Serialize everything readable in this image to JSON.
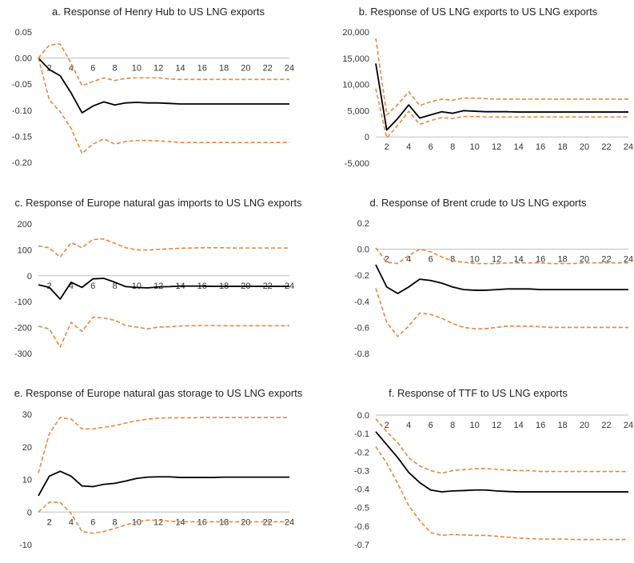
{
  "colors": {
    "irf": "#000000",
    "band": "#e8873a",
    "zero_line": "#bfbfbf"
  },
  "chart_data": [
    {
      "panel": "a",
      "type": "line",
      "title": "a. Response of Henry Hub to US LNG exports",
      "x": [
        1,
        2,
        3,
        4,
        5,
        6,
        7,
        8,
        9,
        10,
        11,
        12,
        13,
        14,
        15,
        16,
        17,
        18,
        19,
        20,
        21,
        22,
        23,
        24
      ],
      "x_tick_labels": [
        "2",
        "4",
        "6",
        "8",
        "10",
        "12",
        "14",
        "16",
        "18",
        "20",
        "22",
        "24"
      ],
      "x_ticks": [
        2,
        4,
        6,
        8,
        10,
        12,
        14,
        16,
        18,
        20,
        22,
        24
      ],
      "y_ticks": [
        0.05,
        0,
        -0.05,
        -0.1,
        -0.15,
        -0.2
      ],
      "y_tick_labels": [
        "0.05",
        "0.00",
        "-0.05",
        "-0.10",
        "-0.15",
        "-0.20"
      ],
      "ylim": [
        -0.2,
        0.05
      ],
      "series": [
        {
          "role": "irf",
          "values": [
            0.0,
            -0.022,
            -0.034,
            -0.067,
            -0.105,
            -0.092,
            -0.084,
            -0.09,
            -0.086,
            -0.085,
            -0.086,
            -0.086,
            -0.087,
            -0.088,
            -0.088,
            -0.088,
            -0.088,
            -0.088,
            -0.088,
            -0.088,
            -0.088,
            -0.088,
            -0.088,
            -0.088
          ]
        },
        {
          "role": "upper",
          "values": [
            0.0,
            0.025,
            0.027,
            -0.01,
            -0.053,
            -0.045,
            -0.038,
            -0.043,
            -0.039,
            -0.038,
            -0.038,
            -0.038,
            -0.04,
            -0.041,
            -0.041,
            -0.041,
            -0.041,
            -0.041,
            -0.041,
            -0.041,
            -0.041,
            -0.041,
            -0.041,
            -0.041
          ]
        },
        {
          "role": "lower",
          "values": [
            0.0,
            -0.08,
            -0.103,
            -0.135,
            -0.183,
            -0.165,
            -0.155,
            -0.165,
            -0.16,
            -0.158,
            -0.158,
            -0.159,
            -0.16,
            -0.162,
            -0.162,
            -0.162,
            -0.162,
            -0.162,
            -0.162,
            -0.162,
            -0.162,
            -0.162,
            -0.162,
            -0.162
          ]
        }
      ]
    },
    {
      "panel": "b",
      "type": "line",
      "title": "b. Response of US LNG exports to US LNG exports",
      "x": [
        1,
        2,
        3,
        4,
        5,
        6,
        7,
        8,
        9,
        10,
        11,
        12,
        13,
        14,
        15,
        16,
        17,
        18,
        19,
        20,
        21,
        22,
        23,
        24
      ],
      "x_tick_labels": [
        "2",
        "4",
        "6",
        "8",
        "10",
        "12",
        "14",
        "16",
        "18",
        "20",
        "22",
        "24"
      ],
      "x_ticks": [
        2,
        4,
        6,
        8,
        10,
        12,
        14,
        16,
        18,
        20,
        22,
        24
      ],
      "y_ticks": [
        20000,
        15000,
        10000,
        5000,
        0,
        -5000
      ],
      "y_tick_labels": [
        "20,000",
        "15,000",
        "10,000",
        "5,000",
        "0",
        "-5,000"
      ],
      "ylim": [
        -5000,
        20000
      ],
      "series": [
        {
          "role": "irf",
          "values": [
            14000,
            1300,
            3500,
            6100,
            3600,
            4200,
            4800,
            4500,
            5000,
            4900,
            4800,
            4800,
            4800,
            4750,
            4750,
            4750,
            4750,
            4750,
            4750,
            4750,
            4750,
            4750,
            4750,
            4750
          ]
        },
        {
          "role": "upper",
          "values": [
            18800,
            4200,
            6200,
            8600,
            6000,
            6700,
            7200,
            7000,
            7400,
            7400,
            7300,
            7200,
            7200,
            7200,
            7200,
            7200,
            7200,
            7200,
            7200,
            7200,
            7200,
            7200,
            7200,
            7200
          ]
        },
        {
          "role": "lower",
          "values": [
            9200,
            -200,
            2200,
            4900,
            2400,
            3100,
            3700,
            3500,
            3900,
            3900,
            3800,
            3800,
            3800,
            3800,
            3800,
            3800,
            3800,
            3800,
            3800,
            3800,
            3800,
            3800,
            3800,
            3800
          ]
        }
      ]
    },
    {
      "panel": "c",
      "type": "line",
      "title": "c. Response of Europe natural gas imports to US LNG exports",
      "x": [
        1,
        2,
        3,
        4,
        5,
        6,
        7,
        8,
        9,
        10,
        11,
        12,
        13,
        14,
        15,
        16,
        17,
        18,
        19,
        20,
        21,
        22,
        23,
        24
      ],
      "x_tick_labels": [
        "2",
        "4",
        "6",
        "8",
        "10",
        "12",
        "14",
        "16",
        "18",
        "20",
        "22",
        "24"
      ],
      "x_ticks": [
        2,
        4,
        6,
        8,
        10,
        12,
        14,
        16,
        18,
        20,
        22,
        24
      ],
      "y_ticks": [
        200,
        100,
        0,
        -100,
        -200,
        -300
      ],
      "y_tick_labels": [
        "200",
        "100",
        "0",
        "-100",
        "-200",
        "-300"
      ],
      "ylim": [
        -300,
        200
      ],
      "series": [
        {
          "role": "irf",
          "values": [
            -35,
            -45,
            -90,
            -25,
            -45,
            -12,
            -10,
            -25,
            -42,
            -45,
            -47,
            -43,
            -42,
            -40,
            -40,
            -40,
            -41,
            -41,
            -41,
            -41,
            -41,
            -41,
            -41,
            -41
          ]
        },
        {
          "role": "upper",
          "values": [
            115,
            108,
            72,
            128,
            108,
            140,
            142,
            125,
            108,
            100,
            99,
            102,
            104,
            106,
            107,
            108,
            108,
            108,
            107,
            107,
            107,
            107,
            107,
            107
          ]
        },
        {
          "role": "lower",
          "values": [
            -195,
            -205,
            -275,
            -180,
            -215,
            -160,
            -163,
            -172,
            -192,
            -198,
            -205,
            -198,
            -197,
            -194,
            -193,
            -192,
            -192,
            -193,
            -193,
            -193,
            -193,
            -193,
            -193,
            -193
          ]
        }
      ]
    },
    {
      "panel": "d",
      "type": "line",
      "title": "d. Response of Brent crude to US LNG exports",
      "x": [
        1,
        2,
        3,
        4,
        5,
        6,
        7,
        8,
        9,
        10,
        11,
        12,
        13,
        14,
        15,
        16,
        17,
        18,
        19,
        20,
        21,
        22,
        23,
        24
      ],
      "x_tick_labels": [
        "2",
        "4",
        "6",
        "8",
        "10",
        "12",
        "14",
        "16",
        "18",
        "20",
        "22",
        "24"
      ],
      "x_ticks": [
        2,
        4,
        6,
        8,
        10,
        12,
        14,
        16,
        18,
        20,
        22,
        24
      ],
      "y_ticks": [
        0.2,
        0,
        -0.2,
        -0.4,
        -0.6,
        -0.8
      ],
      "y_tick_labels": [
        "0.2",
        "0.0",
        "-0.2",
        "-0.4",
        "-0.6",
        "-0.8"
      ],
      "ylim": [
        -0.8,
        0.2
      ],
      "series": [
        {
          "role": "irf",
          "values": [
            -0.12,
            -0.29,
            -0.34,
            -0.29,
            -0.23,
            -0.24,
            -0.26,
            -0.29,
            -0.31,
            -0.315,
            -0.315,
            -0.31,
            -0.305,
            -0.305,
            -0.305,
            -0.31,
            -0.31,
            -0.31,
            -0.31,
            -0.31,
            -0.31,
            -0.31,
            -0.31,
            -0.31
          ]
        },
        {
          "role": "upper",
          "values": [
            0.01,
            -0.1,
            -0.11,
            -0.05,
            0.0,
            -0.02,
            -0.06,
            -0.09,
            -0.1,
            -0.11,
            -0.11,
            -0.11,
            -0.105,
            -0.105,
            -0.105,
            -0.105,
            -0.11,
            -0.11,
            -0.11,
            -0.105,
            -0.105,
            -0.105,
            -0.105,
            -0.105
          ]
        },
        {
          "role": "lower",
          "values": [
            -0.3,
            -0.56,
            -0.67,
            -0.59,
            -0.49,
            -0.5,
            -0.53,
            -0.57,
            -0.6,
            -0.61,
            -0.61,
            -0.6,
            -0.59,
            -0.59,
            -0.59,
            -0.595,
            -0.6,
            -0.6,
            -0.6,
            -0.6,
            -0.6,
            -0.6,
            -0.6,
            -0.6
          ]
        }
      ]
    },
    {
      "panel": "e",
      "type": "line",
      "title": "e. Response of Europe natural gas storage to US LNG exports",
      "x": [
        1,
        2,
        3,
        4,
        5,
        6,
        7,
        8,
        9,
        10,
        11,
        12,
        13,
        14,
        15,
        16,
        17,
        18,
        19,
        20,
        21,
        22,
        23,
        24
      ],
      "x_tick_labels": [
        "2",
        "4",
        "6",
        "8",
        "10",
        "12",
        "14",
        "16",
        "18",
        "20",
        "22",
        "24"
      ],
      "x_ticks": [
        2,
        4,
        6,
        8,
        10,
        12,
        14,
        16,
        18,
        20,
        22,
        24
      ],
      "y_ticks": [
        30,
        20,
        10,
        0,
        -10
      ],
      "y_tick_labels": [
        "30",
        "20",
        "10",
        "0",
        "-10"
      ],
      "ylim": [
        -10,
        30
      ],
      "series": [
        {
          "role": "irf",
          "values": [
            5.0,
            11.0,
            12.5,
            11.0,
            8.0,
            7.8,
            8.5,
            8.8,
            9.5,
            10.3,
            10.7,
            10.8,
            10.8,
            10.6,
            10.6,
            10.6,
            10.6,
            10.7,
            10.7,
            10.7,
            10.7,
            10.7,
            10.7,
            10.7
          ]
        },
        {
          "role": "upper",
          "values": [
            12.0,
            24.0,
            29.0,
            28.5,
            25.5,
            25.5,
            26.0,
            26.5,
            27.3,
            28.0,
            28.5,
            28.8,
            28.9,
            28.9,
            28.9,
            29.0,
            29.0,
            29.0,
            29.0,
            29.0,
            29.0,
            29.0,
            29.0,
            29.0
          ]
        },
        {
          "role": "lower",
          "values": [
            0.0,
            3.0,
            3.0,
            -0.5,
            -6.0,
            -6.5,
            -6.0,
            -5.0,
            -4.0,
            -3.0,
            -2.5,
            -2.5,
            -2.8,
            -3.0,
            -3.0,
            -3.0,
            -3.0,
            -3.0,
            -3.0,
            -3.0,
            -3.0,
            -3.0,
            -3.0,
            -3.0
          ]
        }
      ]
    },
    {
      "panel": "f",
      "type": "line",
      "title": "f. Response of TTF to US LNG exports",
      "x": [
        1,
        2,
        3,
        4,
        5,
        6,
        7,
        8,
        9,
        10,
        11,
        12,
        13,
        14,
        15,
        16,
        17,
        18,
        19,
        20,
        21,
        22,
        23,
        24
      ],
      "x_tick_labels": [
        "2",
        "4",
        "6",
        "8",
        "10",
        "12",
        "14",
        "16",
        "18",
        "20",
        "22",
        "24"
      ],
      "x_ticks": [
        2,
        4,
        6,
        8,
        10,
        12,
        14,
        16,
        18,
        20,
        22,
        24
      ],
      "y_ticks": [
        0,
        -0.1,
        -0.2,
        -0.3,
        -0.4,
        -0.5,
        -0.6,
        -0.7
      ],
      "y_tick_labels": [
        "0.0",
        "-0.1",
        "-0.2",
        "-0.3",
        "-0.4",
        "-0.5",
        "-0.6",
        "-0.7"
      ],
      "ylim": [
        -0.7,
        0
      ],
      "series": [
        {
          "role": "irf",
          "values": [
            -0.09,
            -0.16,
            -0.23,
            -0.31,
            -0.365,
            -0.405,
            -0.415,
            -0.41,
            -0.408,
            -0.405,
            -0.405,
            -0.41,
            -0.413,
            -0.415,
            -0.415,
            -0.415,
            -0.415,
            -0.415,
            -0.415,
            -0.415,
            -0.415,
            -0.415,
            -0.415,
            -0.415
          ]
        },
        {
          "role": "upper",
          "values": [
            -0.02,
            -0.09,
            -0.15,
            -0.23,
            -0.275,
            -0.3,
            -0.315,
            -0.3,
            -0.295,
            -0.29,
            -0.29,
            -0.293,
            -0.298,
            -0.3,
            -0.3,
            -0.305,
            -0.305,
            -0.305,
            -0.305,
            -0.305,
            -0.305,
            -0.305,
            -0.305,
            -0.305
          ]
        },
        {
          "role": "lower",
          "values": [
            -0.17,
            -0.26,
            -0.37,
            -0.49,
            -0.57,
            -0.635,
            -0.65,
            -0.645,
            -0.648,
            -0.65,
            -0.65,
            -0.655,
            -0.66,
            -0.665,
            -0.668,
            -0.67,
            -0.67,
            -0.67,
            -0.672,
            -0.672,
            -0.672,
            -0.672,
            -0.672,
            -0.672
          ]
        }
      ]
    }
  ]
}
